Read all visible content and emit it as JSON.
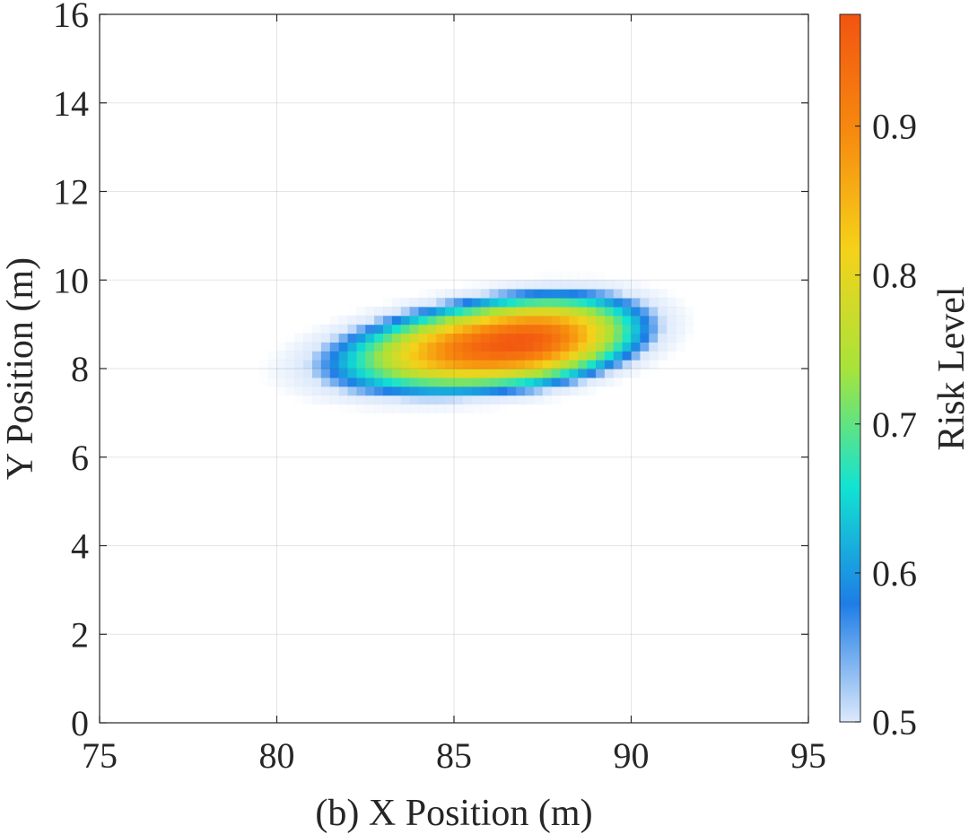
{
  "chart_data": {
    "type": "heatmap",
    "title": "",
    "xlabel": "(b) X Position (m)",
    "ylabel": "Y Position (m)",
    "colorbar_label": "Risk Level",
    "xlim": [
      75,
      95
    ],
    "ylim": [
      0,
      16
    ],
    "x_ticks": [
      75,
      80,
      85,
      90,
      95
    ],
    "y_ticks": [
      0,
      2,
      4,
      6,
      8,
      10,
      12,
      14,
      16
    ],
    "x_tick_labels": [
      "75",
      "80",
      "85",
      "90",
      "95"
    ],
    "y_tick_labels": [
      "0",
      "2",
      "4",
      "6",
      "8",
      "10",
      "12",
      "14",
      "16"
    ],
    "colorbar_range": [
      0.5,
      0.975
    ],
    "colorbar_ticks": [
      0.5,
      0.6,
      0.7,
      0.8,
      0.9
    ],
    "colorbar_tick_labels": [
      "0.5",
      "0.6",
      "0.7",
      "0.8",
      "0.9"
    ],
    "grid": true,
    "risk_field": {
      "description": "Elliptical Gaussian risk peak, pixelated grid",
      "peak_value": 0.97,
      "peak_center": [
        86.8,
        8.6
      ],
      "x_spread_left": 5.2,
      "x_spread_right": 3.6,
      "y_spread": 1.05,
      "tilt_y_per_x": 0.09,
      "cell_size": [
        0.25,
        0.2
      ],
      "values_below_0.5_rendered_as": "white"
    },
    "colormap": [
      "#dce9fb",
      "#1e7de6",
      "#12e3d2",
      "#a8e33a",
      "#f5d21a",
      "#f78a0e",
      "#f25411"
    ]
  }
}
